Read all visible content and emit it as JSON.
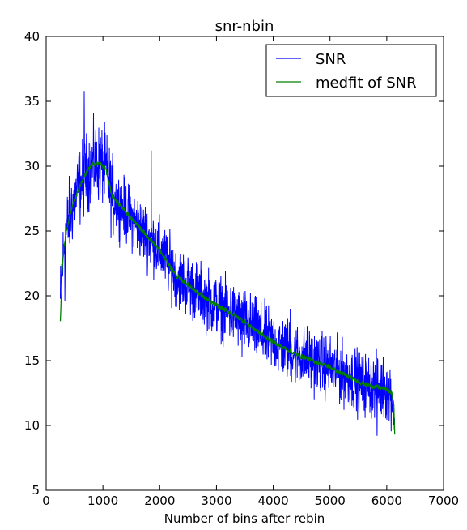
{
  "chart_data": {
    "type": "line",
    "title": "snr-nbin",
    "xlabel": "Number of bins after rebin",
    "ylabel": "",
    "xlim": [
      0,
      7000
    ],
    "ylim": [
      5,
      40
    ],
    "xticks": [
      0,
      1000,
      2000,
      3000,
      4000,
      5000,
      6000,
      7000
    ],
    "yticks": [
      5,
      10,
      15,
      20,
      25,
      30,
      35,
      40
    ],
    "x_tick_labels": [
      "0",
      "1000",
      "2000",
      "3000",
      "4000",
      "5000",
      "6000",
      "7000"
    ],
    "y_tick_labels": [
      "5",
      "10",
      "15",
      "20",
      "25",
      "30",
      "35",
      "40"
    ],
    "grid": false,
    "legend": "top-right",
    "x_range": [
      250,
      6140
    ],
    "series": [
      {
        "name": "SNR",
        "color": "#0000ff",
        "style": "noisy",
        "noise_amplitude": 1.8,
        "x": [
          250,
          280,
          320,
          380,
          450,
          550,
          650,
          750,
          850,
          950,
          1050,
          1100,
          1150,
          1300,
          1500,
          1700,
          2000,
          2300,
          2600,
          2900,
          3200,
          3500,
          3800,
          4100,
          4400,
          4700,
          5000,
          5300,
          5600,
          5900,
          6000,
          6080,
          6140
        ],
        "values": [
          19.5,
          22.0,
          24.0,
          25.5,
          26.8,
          28.0,
          29.0,
          29.8,
          30.2,
          30.2,
          29.8,
          28.8,
          27.8,
          27.0,
          26.0,
          25.0,
          23.5,
          21.5,
          20.5,
          19.5,
          18.8,
          18.0,
          17.0,
          16.2,
          15.5,
          15.0,
          14.5,
          13.8,
          13.2,
          12.9,
          12.8,
          12.5,
          10.5
        ],
        "spikes": [
          [
            670,
            35.8
          ],
          [
            330,
            19.6
          ],
          [
            3450,
            15.3
          ],
          [
            5830,
            9.2
          ],
          [
            6130,
            10.0
          ],
          [
            1850,
            31.2
          ],
          [
            4300,
            19.0
          ]
        ]
      },
      {
        "name": "medfit of SNR",
        "color": "#008000",
        "style": "smooth",
        "x": [
          250,
          280,
          320,
          380,
          450,
          550,
          650,
          750,
          850,
          950,
          1050,
          1100,
          1150,
          1300,
          1500,
          1700,
          2000,
          2300,
          2600,
          2900,
          3200,
          3500,
          3800,
          4100,
          4400,
          4700,
          5000,
          5300,
          5600,
          5900,
          6000,
          6080,
          6120,
          6140
        ],
        "values": [
          17.9,
          22.0,
          24.0,
          25.5,
          26.8,
          28.0,
          29.0,
          29.8,
          30.2,
          30.2,
          29.8,
          28.8,
          27.8,
          27.0,
          26.0,
          25.0,
          23.5,
          21.5,
          20.5,
          19.5,
          18.8,
          18.0,
          17.0,
          16.2,
          15.5,
          15.0,
          14.5,
          13.8,
          13.2,
          12.9,
          12.8,
          12.5,
          12.0,
          9.3
        ]
      }
    ]
  }
}
